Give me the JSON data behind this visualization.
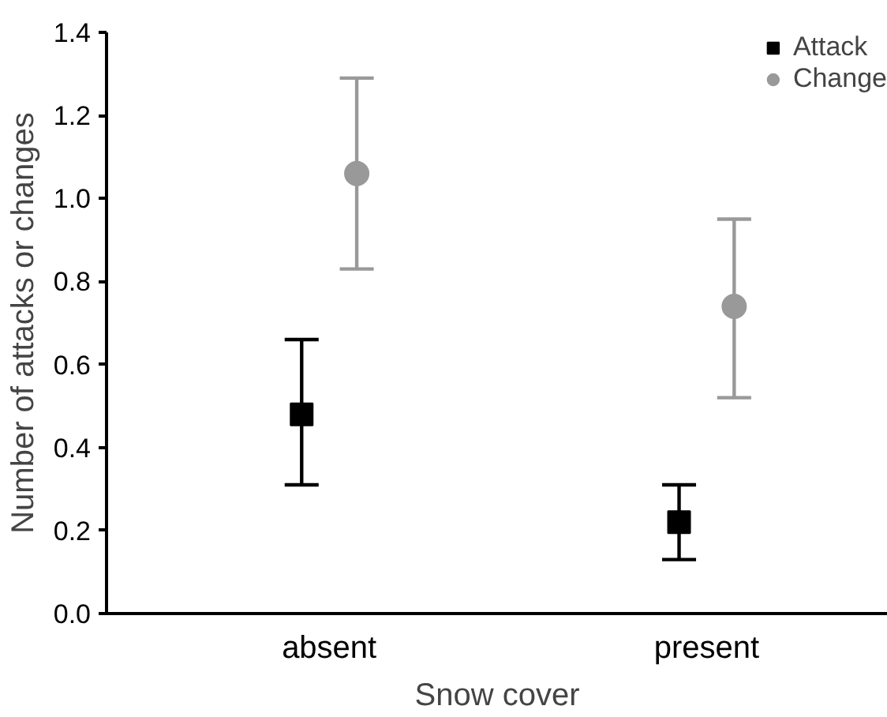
{
  "chart_data": {
    "type": "scatter",
    "xlabel": "Snow cover",
    "ylabel": "Number of attacks or changes",
    "categories": [
      "absent",
      "present"
    ],
    "series": [
      {
        "name": "Attack",
        "color": "#000000",
        "marker": "square",
        "values": [
          0.48,
          0.22
        ],
        "errors": [
          [
            0.31,
            0.66
          ],
          [
            0.13,
            0.31
          ]
        ]
      },
      {
        "name": "Change",
        "color": "#999999",
        "marker": "circle",
        "values": [
          1.06,
          0.74
        ],
        "errors": [
          [
            0.83,
            1.29
          ],
          [
            0.52,
            0.95
          ]
        ]
      }
    ],
    "ylim": [
      0,
      1.4
    ],
    "yticks": [
      {
        "value": 0,
        "label": "0.0"
      },
      0.2,
      0.4,
      0.6,
      0.8,
      {
        "value": 1,
        "label": "1.0"
      },
      1.2,
      1.4
    ],
    "legend": "top right"
  }
}
